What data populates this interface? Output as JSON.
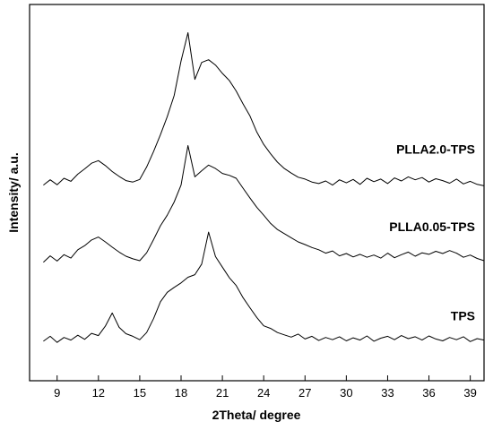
{
  "chart_data": {
    "type": "line",
    "xlabel": "2Theta/ degree",
    "ylabel": "Intensity/ a.u.",
    "xlim": [
      7,
      40
    ],
    "xticks": [
      9,
      12,
      15,
      18,
      21,
      24,
      27,
      30,
      33,
      36,
      39
    ],
    "ylim": [
      0,
      100
    ],
    "x": [
      8,
      8.5,
      9,
      9.5,
      10,
      10.5,
      11,
      11.5,
      12,
      12.5,
      13,
      13.5,
      14,
      14.5,
      15,
      15.5,
      16,
      16.5,
      17,
      17.5,
      18,
      18.5,
      19,
      19.5,
      20,
      20.5,
      21,
      21.5,
      22,
      22.5,
      23,
      23.5,
      24,
      24.5,
      25,
      25.5,
      26,
      26.5,
      27,
      27.5,
      28,
      28.5,
      29,
      29.5,
      30,
      30.5,
      31,
      31.5,
      32,
      32.5,
      33,
      33.5,
      34,
      34.5,
      35,
      35.5,
      36,
      36.5,
      37,
      37.5,
      38,
      38.5,
      39,
      39.5,
      40
    ],
    "series": [
      {
        "name": "PLLA2.0-TPS",
        "color": "#000000",
        "values": [
          52.0,
          53.4,
          52.1,
          53.8,
          53.0,
          54.9,
          56.3,
          57.8,
          58.5,
          57.2,
          55.6,
          54.3,
          53.2,
          52.8,
          53.5,
          56.8,
          60.9,
          65.4,
          70.2,
          75.8,
          85.0,
          92.5,
          80.1,
          84.6,
          85.3,
          83.9,
          81.7,
          79.8,
          77.0,
          73.6,
          70.4,
          66.1,
          62.8,
          60.3,
          58.1,
          56.4,
          55.2,
          54.1,
          53.6,
          52.8,
          52.4,
          53.1,
          52.0,
          53.4,
          52.6,
          53.5,
          52.2,
          53.8,
          52.9,
          53.6,
          52.4,
          53.9,
          53.1,
          54.2,
          53.4,
          54.0,
          52.8,
          53.7,
          53.2,
          52.5,
          53.6,
          52.3,
          53.0,
          52.2,
          51.8
        ]
      },
      {
        "name": "PLLA0.05-TPS",
        "color": "#000000",
        "values": [
          31.5,
          33.2,
          31.8,
          33.5,
          32.6,
          34.8,
          35.9,
          37.4,
          38.2,
          36.9,
          35.5,
          34.2,
          33.1,
          32.4,
          31.9,
          34.0,
          37.5,
          41.2,
          44.0,
          47.5,
          52.0,
          62.5,
          54.2,
          55.8,
          57.3,
          56.4,
          55.1,
          54.6,
          53.8,
          51.2,
          48.6,
          46.1,
          44.0,
          41.8,
          40.2,
          39.1,
          38.0,
          36.9,
          36.2,
          35.4,
          34.8,
          33.9,
          34.5,
          33.2,
          33.8,
          32.9,
          33.6,
          32.8,
          33.4,
          32.6,
          33.9,
          32.7,
          33.5,
          34.2,
          33.1,
          34.0,
          33.6,
          34.4,
          33.8,
          34.6,
          33.9,
          32.8,
          33.4,
          32.5,
          31.9
        ]
      },
      {
        "name": "TPS",
        "color": "#000000",
        "values": [
          10.5,
          11.8,
          10.2,
          11.5,
          10.8,
          12.1,
          11.0,
          12.6,
          12.0,
          14.5,
          18.0,
          14.2,
          12.5,
          11.8,
          10.9,
          12.8,
          16.5,
          21.0,
          23.5,
          24.8,
          26.0,
          27.5,
          28.2,
          31.0,
          39.5,
          33.0,
          30.2,
          27.4,
          25.3,
          22.1,
          19.4,
          16.8,
          14.6,
          13.9,
          12.8,
          12.2,
          11.6,
          12.4,
          11.1,
          11.8,
          10.7,
          11.5,
          10.9,
          11.7,
          10.6,
          11.4,
          10.8,
          11.9,
          10.5,
          11.3,
          11.8,
          10.9,
          12.0,
          11.2,
          11.7,
          10.8,
          11.9,
          11.1,
          10.6,
          11.5,
          10.9,
          11.7,
          10.4,
          11.2,
          10.8
        ]
      }
    ]
  }
}
